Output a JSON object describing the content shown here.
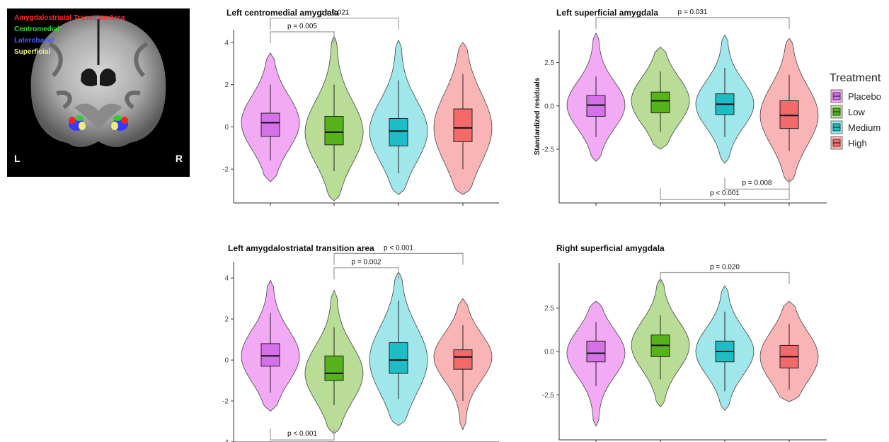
{
  "brain_figure": {
    "regions": [
      {
        "label": "Amygdalostriatal Transition Area",
        "color": "#ff2a2a"
      },
      {
        "label": "Centromedial",
        "color": "#3cd63c"
      },
      {
        "label": "Laterobasal",
        "color": "#4a5cff"
      },
      {
        "label": "Superficial",
        "color": "#f0f27a"
      }
    ],
    "left_label": "L",
    "right_label": "R"
  },
  "legend": {
    "title": "Treatment",
    "items": [
      {
        "label": "Placebo",
        "fill": "#f2aaf4",
        "box": "#d571e8"
      },
      {
        "label": "Low",
        "fill": "#b9dc97",
        "box": "#56b31c"
      },
      {
        "label": "Medium",
        "fill": "#9fe7ea",
        "box": "#1fbcc4"
      },
      {
        "label": "High",
        "fill": "#f9b5b5",
        "box": "#f46a6a"
      }
    ]
  },
  "chart_data": [
    {
      "type": "violin",
      "title": "Left centromedial amygdala",
      "ylabel": "",
      "ylim": [
        -3.6,
        4.6
      ],
      "yticks": [
        -2,
        0,
        2,
        4
      ],
      "ytick_labels": [
        "-2",
        "0",
        "2",
        "4"
      ],
      "categories": [
        "Placebo",
        "Low",
        "Medium",
        "High"
      ],
      "series": [
        {
          "name": "Placebo",
          "q1": -0.45,
          "median": 0.2,
          "q3": 0.65,
          "whisker_low": -1.6,
          "whisker_high": 2.0,
          "min": -2.6,
          "max": 3.5
        },
        {
          "name": "Low",
          "q1": -0.85,
          "median": -0.25,
          "q3": 0.5,
          "whisker_low": -2.1,
          "whisker_high": 2.0,
          "min": -3.5,
          "max": 4.3
        },
        {
          "name": "Medium",
          "q1": -0.9,
          "median": -0.2,
          "q3": 0.4,
          "whisker_low": -2.2,
          "whisker_high": 2.2,
          "min": -3.2,
          "max": 4.1
        },
        {
          "name": "High",
          "q1": -0.7,
          "median": -0.05,
          "q3": 0.85,
          "whisker_low": -2.0,
          "whisker_high": 2.5,
          "min": -3.2,
          "max": 4.0
        }
      ],
      "comparisons": [
        {
          "from": "Placebo",
          "to": "Medium",
          "label": "p = 0.021",
          "y": 5.15,
          "direction": "down"
        },
        {
          "from": "Placebo",
          "to": "Low",
          "label": "p = 0.005",
          "y": 4.5,
          "direction": "down"
        }
      ]
    },
    {
      "type": "violin",
      "title": "Left superficial amygdala",
      "ylabel": "Standardized residuals",
      "ylim": [
        -5.6,
        4.4
      ],
      "yticks": [
        -2.5,
        0,
        2.5
      ],
      "ytick_labels": [
        "-2.5",
        "0.0",
        "2.5"
      ],
      "categories": [
        "Placebo",
        "Low",
        "Medium",
        "High"
      ],
      "series": [
        {
          "name": "Placebo",
          "q1": -0.6,
          "median": 0.05,
          "q3": 0.6,
          "whisker_low": -1.8,
          "whisker_high": 1.7,
          "min": -3.2,
          "max": 4.2
        },
        {
          "name": "Low",
          "q1": -0.4,
          "median": 0.3,
          "q3": 0.8,
          "whisker_low": -1.5,
          "whisker_high": 2.0,
          "min": -2.5,
          "max": 3.4
        },
        {
          "name": "Medium",
          "q1": -0.5,
          "median": 0.1,
          "q3": 0.7,
          "whisker_low": -1.8,
          "whisker_high": 2.2,
          "min": -3.3,
          "max": 4.1
        },
        {
          "name": "High",
          "q1": -1.3,
          "median": -0.55,
          "q3": 0.3,
          "whisker_low": -2.6,
          "whisker_high": 1.8,
          "min": -4.4,
          "max": 3.9
        },
        {
          "name": "",
          "hidden": true
        }
      ],
      "comparisons": [
        {
          "from": "Placebo",
          "to": "High",
          "label": "p = 0.031",
          "y": 5.1,
          "direction": "down"
        },
        {
          "from": "Low",
          "to": "High",
          "label": "p < 0.001",
          "y": -5.4,
          "direction": "up"
        },
        {
          "from": "Medium",
          "to": "High",
          "label": "p = 0.008",
          "y": -4.8,
          "direction": "up"
        }
      ]
    },
    {
      "type": "violin",
      "title": "Left amygdalostriatal transition area",
      "ylabel": "",
      "ylim": [
        -4.0,
        4.8
      ],
      "yticks": [
        -4,
        -2,
        0,
        2,
        4
      ],
      "ytick_labels": [
        "-4",
        "-2",
        "0",
        "2",
        "4"
      ],
      "categories": [
        "Placebo",
        "Low",
        "Medium",
        "High"
      ],
      "series": [
        {
          "name": "Placebo",
          "q1": -0.3,
          "median": 0.2,
          "q3": 0.8,
          "whisker_low": -1.6,
          "whisker_high": 2.3,
          "min": -2.5,
          "max": 3.9
        },
        {
          "name": "Low",
          "q1": -1.0,
          "median": -0.65,
          "q3": 0.2,
          "whisker_low": -2.2,
          "whisker_high": 1.6,
          "min": -3.6,
          "max": 3.4
        },
        {
          "name": "Medium",
          "q1": -0.65,
          "median": 0.0,
          "q3": 0.85,
          "whisker_low": -1.9,
          "whisker_high": 2.9,
          "min": -3.2,
          "max": 4.3
        },
        {
          "name": "High",
          "q1": -0.45,
          "median": 0.15,
          "q3": 0.5,
          "whisker_low": -2.0,
          "whisker_high": 1.7,
          "min": -3.4,
          "max": 3.0
        }
      ],
      "comparisons": [
        {
          "from": "Low",
          "to": "High",
          "label": "p < 0.001",
          "y": 5.2,
          "direction": "down"
        },
        {
          "from": "Low",
          "to": "Medium",
          "label": "p = 0.002",
          "y": 4.5,
          "direction": "down"
        },
        {
          "from": "Placebo",
          "to": "Low",
          "label": "p < 0.001",
          "y": -3.9,
          "direction": "up"
        }
      ]
    },
    {
      "type": "violin",
      "title": "Right superficial amygdala",
      "ylabel": "",
      "ylim": [
        -5.1,
        5.1
      ],
      "yticks": [
        -2.5,
        0,
        2.5
      ],
      "ytick_labels": [
        "-2.5",
        "0.0",
        "2.5"
      ],
      "categories": [
        "Placebo",
        "Low",
        "Medium",
        "High"
      ],
      "series": [
        {
          "name": "Placebo",
          "q1": -0.6,
          "median": -0.1,
          "q3": 0.6,
          "whisker_low": -2.0,
          "whisker_high": 1.7,
          "min": -4.3,
          "max": 2.9
        },
        {
          "name": "Low",
          "q1": -0.3,
          "median": 0.35,
          "q3": 0.95,
          "whisker_low": -1.6,
          "whisker_high": 2.1,
          "min": -3.2,
          "max": 4.2
        },
        {
          "name": "Medium",
          "q1": -0.6,
          "median": 0.0,
          "q3": 0.6,
          "whisker_low": -2.3,
          "whisker_high": 2.3,
          "min": -3.4,
          "max": 3.8
        },
        {
          "name": "High",
          "q1": -0.95,
          "median": -0.3,
          "q3": 0.35,
          "whisker_low": -2.2,
          "whisker_high": 1.6,
          "min": -2.9,
          "max": 2.9
        }
      ],
      "comparisons": [
        {
          "from": "Low",
          "to": "High",
          "label": "p = 0.020",
          "y": 4.55,
          "direction": "down"
        }
      ]
    }
  ]
}
